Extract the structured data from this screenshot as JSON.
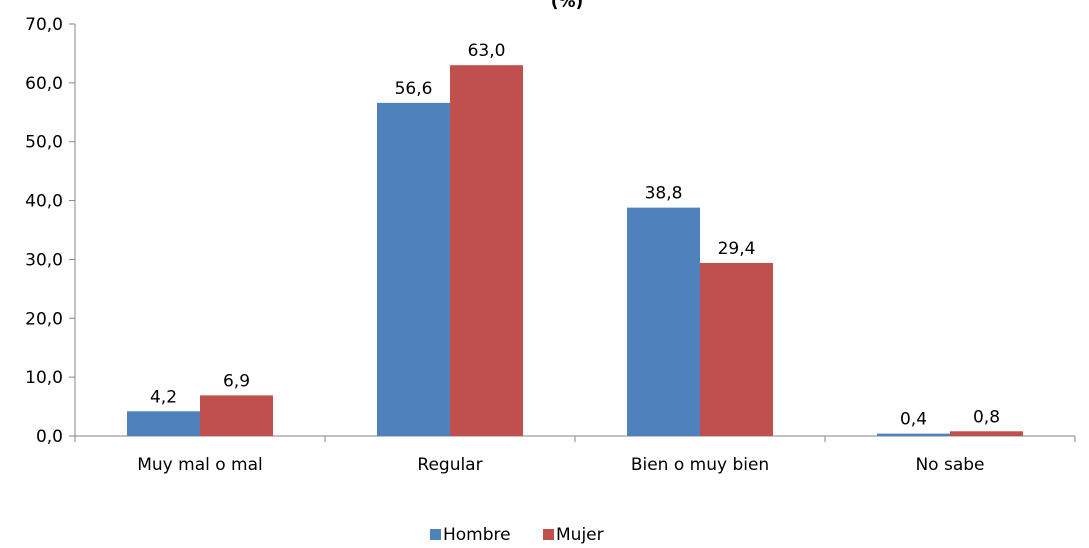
{
  "chart_data": {
    "type": "bar",
    "title": "(%)",
    "categories": [
      "Muy mal o mal",
      "Regular",
      "Bien o muy bien",
      "No sabe"
    ],
    "series": [
      {
        "name": "Hombre",
        "values": [
          4.2,
          56.6,
          38.8,
          0.4
        ],
        "color": "#4F81BD",
        "labels": [
          "4,2",
          "56,6",
          "38,8",
          "0,4"
        ]
      },
      {
        "name": "Mujer",
        "values": [
          6.9,
          63.0,
          29.4,
          0.8
        ],
        "color": "#C0504D",
        "labels": [
          "6,9",
          "63,0",
          "29,4",
          "0,8"
        ]
      }
    ],
    "ylim": [
      0,
      70
    ],
    "yticks": [
      0,
      10,
      20,
      30,
      40,
      50,
      60,
      70
    ],
    "ytick_labels": [
      "0,0",
      "10,0",
      "20,0",
      "30,0",
      "40,0",
      "50,0",
      "60,0",
      "70,0"
    ],
    "grid": false,
    "legend_position": "bottom"
  }
}
